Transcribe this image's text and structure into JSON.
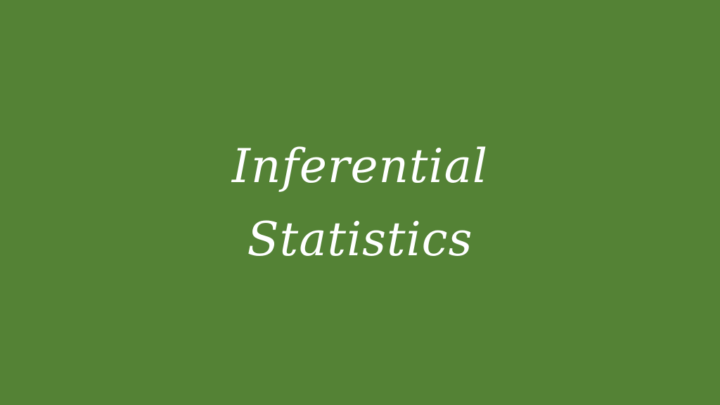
{
  "slide": {
    "background_color": "#548235",
    "text_color": "#ffffff",
    "title_lines": [
      "Inferential",
      "Statistics"
    ]
  }
}
